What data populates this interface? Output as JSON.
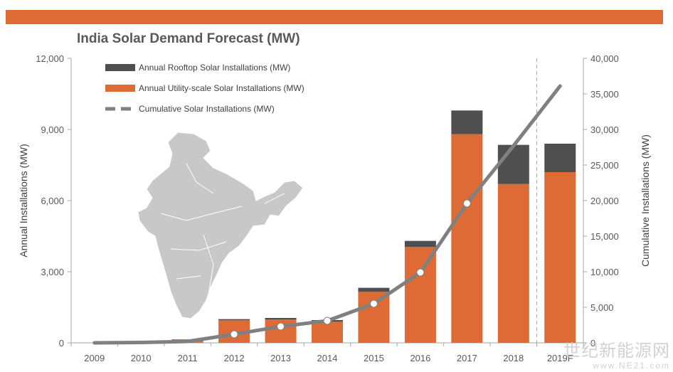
{
  "header": {
    "accent_color": "#de6b35"
  },
  "watermark": {
    "text": "世纪新能源网",
    "url": "www.NE21.com"
  },
  "chart_data": {
    "type": "bar",
    "title": "India Solar Demand Forecast (MW)",
    "categories": [
      "2009",
      "2010",
      "2011",
      "2012",
      "2013",
      "2014",
      "2015",
      "2016",
      "2017",
      "2018",
      "2019F"
    ],
    "stacked": true,
    "series": [
      {
        "name": "Annual Utility-scale Solar Installations (MW)",
        "type": "bar",
        "axis": "left",
        "color": "#de6b35",
        "values": [
          0,
          0,
          150,
          950,
          980,
          890,
          2150,
          4050,
          8800,
          6700,
          7200
        ]
      },
      {
        "name": "Annual Rooftop Solar Installations (MW)",
        "type": "bar",
        "axis": "left",
        "color": "#4f4f4f",
        "values": [
          0,
          0,
          0,
          50,
          70,
          70,
          170,
          250,
          1000,
          1650,
          1200
        ]
      },
      {
        "name": "Cumulative Solar Installations (MW)",
        "type": "line",
        "axis": "right",
        "color": "#808080",
        "values": [
          0,
          50,
          200,
          1200,
          2300,
          3100,
          5500,
          9900,
          19600,
          27700,
          36100
        ]
      }
    ],
    "legend_order": [
      "Annual Rooftop Solar Installations (MW)",
      "Annual Utility-scale Solar Installations (MW)",
      "Cumulative Solar Installations (MW)"
    ],
    "ylabel": "Annual Installations (MW)",
    "ylim": [
      0,
      12000
    ],
    "yticks": [
      0,
      3000,
      6000,
      9000,
      12000
    ],
    "ytick_labels": [
      "0",
      "3,000",
      "6,000",
      "9,000",
      "12,000"
    ],
    "y2label": "Cumulative Installations (MW)",
    "y2lim": [
      0,
      40000
    ],
    "y2ticks": [
      0,
      5000,
      10000,
      15000,
      20000,
      25000,
      30000,
      35000,
      40000
    ],
    "y2tick_labels": [
      "0",
      "5,000",
      "10,000",
      "15,000",
      "20,000",
      "25,000",
      "30,000",
      "35,000",
      "40,000"
    ],
    "forecast_from_index": 10,
    "legend_position": "top-left",
    "grid": false,
    "map_color": "#c8c8c8"
  }
}
